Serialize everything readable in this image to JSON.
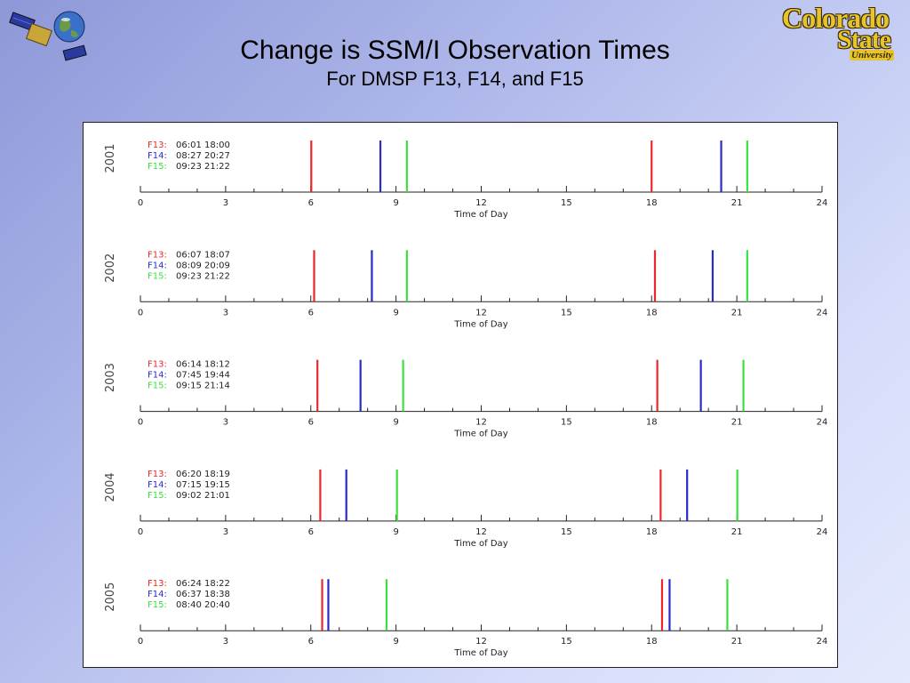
{
  "header": {
    "title": "Change is SSM/I Observation Times",
    "subtitle": "For DMSP F13, F14, and F15"
  },
  "logos": {
    "left_icon": "satellite-globe-icon",
    "right_line1": "Colorado",
    "right_line2": "State",
    "right_line3": "University"
  },
  "colors": {
    "F13": "#e8282a",
    "F14": "#2a2acc",
    "F15": "#3ce03c"
  },
  "chart_data": [
    {
      "type": "line",
      "year": "2001",
      "xlabel": "Time of Day",
      "xlim": [
        0,
        24
      ],
      "x_ticks": [
        0,
        3,
        6,
        9,
        12,
        15,
        18,
        21,
        24
      ],
      "series": [
        {
          "name": "F13",
          "label": "F13:",
          "times_text": "06:01  18:00",
          "x": [
            6.017,
            18.0
          ]
        },
        {
          "name": "F14",
          "label": "F14:",
          "times_text": "08:27  20:27",
          "x": [
            8.45,
            20.45
          ]
        },
        {
          "name": "F15",
          "label": "F15:",
          "times_text": "09:23  21:22",
          "x": [
            9.383,
            21.367
          ]
        }
      ]
    },
    {
      "type": "line",
      "year": "2002",
      "xlabel": "Time of Day",
      "xlim": [
        0,
        24
      ],
      "x_ticks": [
        0,
        3,
        6,
        9,
        12,
        15,
        18,
        21,
        24
      ],
      "series": [
        {
          "name": "F13",
          "label": "F13:",
          "times_text": "06:07  18:07",
          "x": [
            6.117,
            18.117
          ]
        },
        {
          "name": "F14",
          "label": "F14:",
          "times_text": "08:09  20:09",
          "x": [
            8.15,
            20.15
          ]
        },
        {
          "name": "F15",
          "label": "F15:",
          "times_text": "09:23  21:22",
          "x": [
            9.383,
            21.367
          ]
        }
      ]
    },
    {
      "type": "line",
      "year": "2003",
      "xlabel": "Time of Day",
      "xlim": [
        0,
        24
      ],
      "x_ticks": [
        0,
        3,
        6,
        9,
        12,
        15,
        18,
        21,
        24
      ],
      "series": [
        {
          "name": "F13",
          "label": "F13:",
          "times_text": "06:14  18:12",
          "x": [
            6.233,
            18.2
          ]
        },
        {
          "name": "F14",
          "label": "F14:",
          "times_text": "07:45  19:44",
          "x": [
            7.75,
            19.733
          ]
        },
        {
          "name": "F15",
          "label": "F15:",
          "times_text": "09:15  21:14",
          "x": [
            9.25,
            21.233
          ]
        }
      ]
    },
    {
      "type": "line",
      "year": "2004",
      "xlabel": "Time of Day",
      "xlim": [
        0,
        24
      ],
      "x_ticks": [
        0,
        3,
        6,
        9,
        12,
        15,
        18,
        21,
        24
      ],
      "series": [
        {
          "name": "F13",
          "label": "F13:",
          "times_text": "06:20  18:19",
          "x": [
            6.333,
            18.317
          ]
        },
        {
          "name": "F14",
          "label": "F14:",
          "times_text": "07:15  19:15",
          "x": [
            7.25,
            19.25
          ]
        },
        {
          "name": "F15",
          "label": "F15:",
          "times_text": "09:02  21:01",
          "x": [
            9.033,
            21.017
          ]
        }
      ]
    },
    {
      "type": "line",
      "year": "2005",
      "xlabel": "Time of Day",
      "xlim": [
        0,
        24
      ],
      "x_ticks": [
        0,
        3,
        6,
        9,
        12,
        15,
        18,
        21,
        24
      ],
      "series": [
        {
          "name": "F13",
          "label": "F13:",
          "times_text": "06:24  18:22",
          "x": [
            6.4,
            18.367
          ]
        },
        {
          "name": "F14",
          "label": "F14:",
          "times_text": "06:37  18:38",
          "x": [
            6.617,
            18.633
          ]
        },
        {
          "name": "F15",
          "label": "F15:",
          "times_text": "08:40  20:40",
          "x": [
            8.667,
            20.667
          ]
        }
      ]
    }
  ]
}
